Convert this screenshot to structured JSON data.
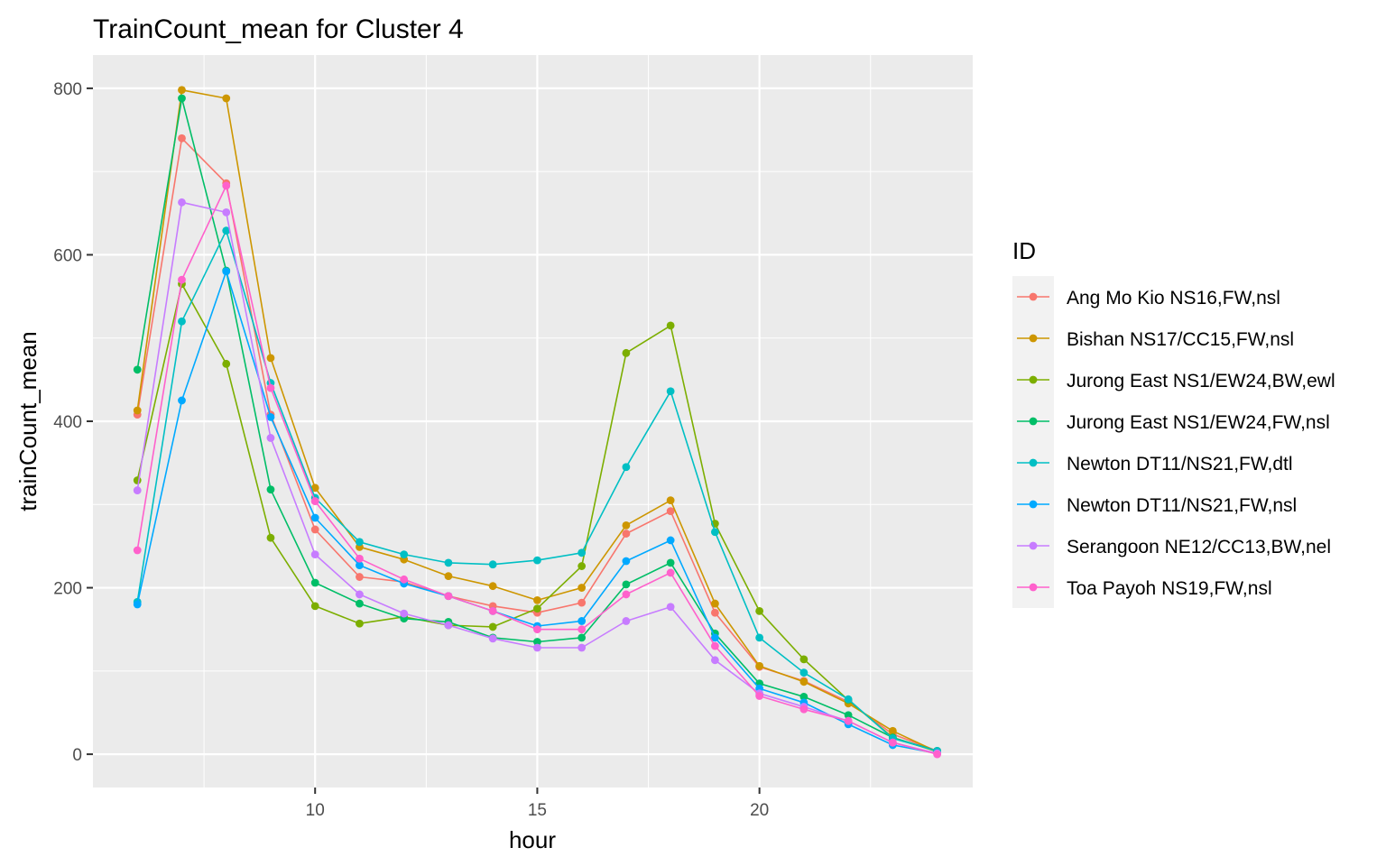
{
  "chart_data": {
    "type": "line",
    "title": "TrainCount_mean for Cluster 4",
    "xlabel": "hour",
    "ylabel": "trainCount_mean",
    "xlim": [
      5,
      24.8
    ],
    "ylim": [
      -40,
      840
    ],
    "x_ticks": [
      10,
      15,
      20
    ],
    "x_tick_labels": [
      "10",
      "15",
      "20"
    ],
    "y_ticks": [
      0,
      200,
      400,
      600,
      800
    ],
    "y_tick_labels": [
      "0",
      "200",
      "400",
      "600",
      "800"
    ],
    "grid": true,
    "legend_title": "ID",
    "legend_position": "right",
    "x": [
      6,
      7,
      8,
      9,
      10,
      11,
      12,
      13,
      14,
      15,
      16,
      17,
      18,
      19,
      20,
      21,
      22,
      23,
      24
    ],
    "series": [
      {
        "name": "Ang Mo Kio NS16,FW,nsl",
        "color": "#F8766D",
        "values": [
          408,
          740,
          686,
          408,
          270,
          213,
          207,
          190,
          178,
          170,
          182,
          265,
          292,
          170,
          105,
          88,
          63,
          24,
          4
        ]
      },
      {
        "name": "Bishan NS17/CC15,FW,nsl",
        "color": "#CD9600",
        "values": [
          413,
          798,
          788,
          476,
          320,
          249,
          234,
          214,
          202,
          185,
          200,
          275,
          305,
          181,
          106,
          87,
          61,
          28,
          3
        ]
      },
      {
        "name": "Jurong East NS1/EW24,BW,ewl",
        "color": "#7CAE00",
        "values": [
          329,
          565,
          469,
          260,
          178,
          157,
          165,
          155,
          153,
          175,
          226,
          482,
          515,
          277,
          172,
          114,
          65,
          20,
          3
        ]
      },
      {
        "name": "Jurong East NS1/EW24,FW,nsl",
        "color": "#00BE67",
        "values": [
          462,
          788,
          581,
          318,
          206,
          181,
          163,
          159,
          140,
          135,
          140,
          204,
          230,
          145,
          85,
          69,
          47,
          20,
          4
        ]
      },
      {
        "name": "Newton DT11/NS21,FW,dtl",
        "color": "#00BFC4",
        "values": [
          183,
          520,
          629,
          446,
          308,
          255,
          240,
          230,
          228,
          233,
          242,
          345,
          436,
          267,
          140,
          98,
          66,
          19,
          4
        ]
      },
      {
        "name": "Newton DT11/NS21,FW,nsl",
        "color": "#00A9FF",
        "values": [
          180,
          425,
          580,
          405,
          284,
          227,
          205,
          190,
          172,
          154,
          160,
          232,
          257,
          140,
          79,
          62,
          36,
          11,
          1
        ]
      },
      {
        "name": "Serangoon NE12/CC13,BW,nel",
        "color": "#C77CFF",
        "values": [
          317,
          663,
          651,
          380,
          240,
          192,
          169,
          155,
          139,
          128,
          128,
          160,
          177,
          113,
          73,
          57,
          40,
          14,
          1
        ]
      },
      {
        "name": "Toa Payoh NS19,FW,nsl",
        "color": "#FF61CC",
        "values": [
          245,
          570,
          683,
          440,
          304,
          235,
          210,
          190,
          172,
          150,
          150,
          192,
          218,
          130,
          70,
          54,
          40,
          14,
          0
        ]
      }
    ]
  }
}
